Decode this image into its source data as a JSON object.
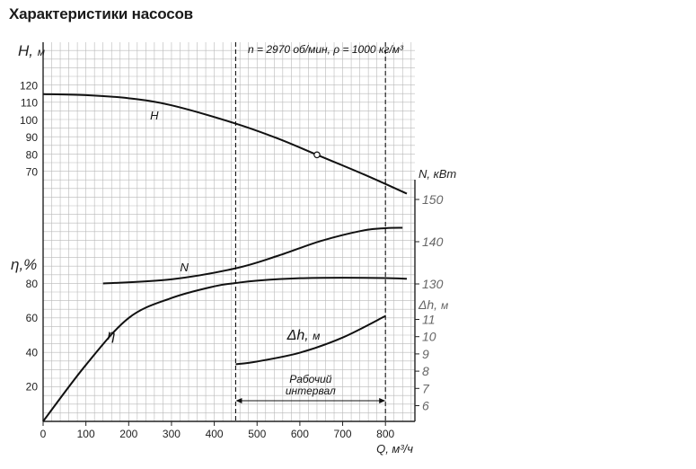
{
  "page": {
    "title": "Характеристики насосов"
  },
  "chart_data": {
    "type": "line",
    "title": "Характеристики насосов",
    "conditions": "n = 2970 об/мин, ρ = 1000 кг/м³",
    "x_axis": {
      "label": "Q, м³/ч",
      "ticks": [
        "0",
        "100",
        "200",
        "300",
        "400",
        "500",
        "600",
        "700",
        "800"
      ],
      "range": [
        0,
        850
      ]
    },
    "y_axes": {
      "H": {
        "label": "H, м",
        "ticks": [
          "70",
          "80",
          "90",
          "100",
          "110",
          "120"
        ],
        "range": [
          70,
          120
        ]
      },
      "eta": {
        "label": "η,%",
        "ticks": [
          "20",
          "40",
          "60",
          "80"
        ],
        "range": [
          0,
          80
        ]
      },
      "N": {
        "label": "N, кВт",
        "ticks": [
          "130",
          "140",
          "150"
        ],
        "range": [
          130,
          150
        ]
      },
      "dh": {
        "label": "Δh, м",
        "ticks": [
          "6",
          "7",
          "8",
          "9",
          "10",
          "11"
        ],
        "range": [
          6,
          11
        ]
      }
    },
    "grid": true,
    "series": [
      {
        "name": "H",
        "axis": "H",
        "x": [
          0,
          100,
          200,
          300,
          450,
          550,
          640,
          750,
          850
        ],
        "y": [
          115.2,
          114.6,
          112.8,
          108.7,
          98.1,
          89.3,
          80,
          68.6,
          57.5
        ]
      },
      {
        "name": "N",
        "axis": "N",
        "x": [
          140,
          300,
          450,
          550,
          650,
          750,
          800,
          840
        ],
        "y": [
          130.1,
          131.1,
          133.7,
          136.7,
          140.2,
          142.7,
          143.2,
          143.3
        ]
      },
      {
        "name": "η",
        "axis": "eta",
        "x": [
          0,
          100,
          200,
          300,
          400,
          450,
          500,
          600,
          700,
          800,
          850
        ],
        "y": [
          0,
          32.8,
          60.1,
          71.7,
          78.5,
          80.4,
          81.8,
          83.2,
          83.5,
          83.3,
          82.9
        ]
      },
      {
        "name": "Δh, м",
        "axis": "dh",
        "x": [
          450,
          500,
          600,
          700,
          800
        ],
        "y": [
          8.4,
          8.56,
          9.07,
          9.95,
          11.2
        ]
      }
    ],
    "operating_interval": {
      "label_line1": "Рабочий",
      "label_line2": "интервал",
      "x_from": 450,
      "x_to": 800
    },
    "marked_point": {
      "x": 640,
      "y": 80,
      "axis": "H"
    }
  }
}
